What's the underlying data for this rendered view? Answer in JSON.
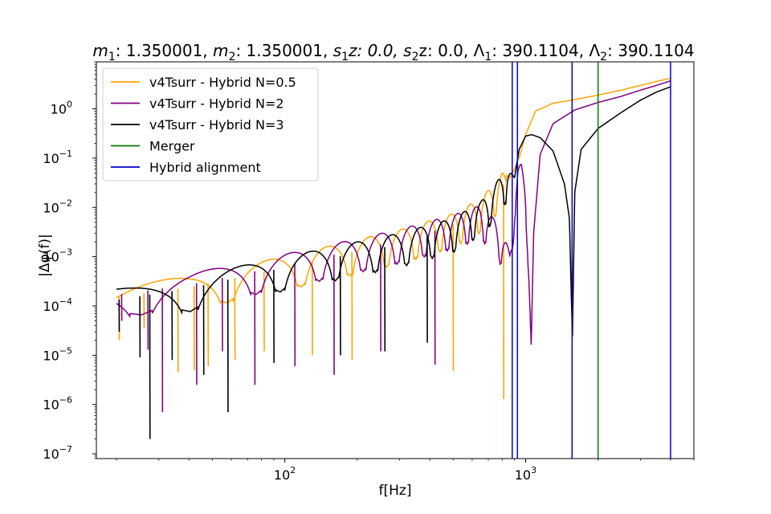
{
  "chart_data": {
    "type": "line",
    "title": {
      "m1_label": "m",
      "m1_sub": "1",
      "m1_value": ": 1.350001, ",
      "m2_label": "m",
      "m2_sub": "2",
      "m2_value": ": 1.350001, ",
      "s1z_label": "s",
      "s1z_sub": "1",
      "s1z_value": "z: 0.0, ",
      "s2z_label": "s",
      "s2z_sub": "2",
      "s2z_value": "z: 0.0, ",
      "L1_label": "Λ",
      "L1_sub": "1",
      "L1_value": ": 390.1104, ",
      "L2_label": "Λ",
      "L2_sub": "2",
      "L2_value": ": 390.1104"
    },
    "xlabel": "f[Hz]",
    "ylabel": "|Δφ(f)|",
    "xscale": "log",
    "yscale": "log",
    "xlim": [
      16.5,
      5000
    ],
    "ylim": [
      8e-08,
      9
    ],
    "x_ticks": [
      {
        "value": 100,
        "base": "10",
        "exp": "2"
      },
      {
        "value": 1000,
        "base": "10",
        "exp": "3"
      }
    ],
    "y_ticks": [
      {
        "value": 1e-07,
        "base": "10",
        "exp": "−7"
      },
      {
        "value": 1e-06,
        "base": "10",
        "exp": "−6"
      },
      {
        "value": 1e-05,
        "base": "10",
        "exp": "−5"
      },
      {
        "value": 0.0001,
        "base": "10",
        "exp": "−4"
      },
      {
        "value": 0.001,
        "base": "10",
        "exp": "−3"
      },
      {
        "value": 0.01,
        "base": "10",
        "exp": "−2"
      },
      {
        "value": 0.1,
        "base": "10",
        "exp": "−1"
      },
      {
        "value": 1,
        "base": "10",
        "exp": "0"
      }
    ],
    "grid": false,
    "legend_position": "top-left",
    "series": [
      {
        "name": "v4Tsurr - Hybrid N=0.5",
        "color": "#ffa500",
        "x": [
          20,
          40,
          80,
          150,
          300,
          500,
          650,
          740,
          800,
          830,
          860,
          900,
          950,
          1000,
          1100,
          1300,
          1600,
          2000,
          2500,
          3000,
          3500,
          4000
        ],
        "y": [
          0.00025,
          0.0004,
          0.0008,
          0.0016,
          0.0035,
          0.0075,
          0.015,
          0.03,
          0.05,
          0.045,
          0.04,
          0.06,
          0.12,
          0.3,
          0.9,
          1.3,
          1.55,
          1.9,
          2.4,
          3.0,
          3.6,
          4.2
        ]
      },
      {
        "name": "v4Tsurr - Hybrid N=2",
        "color": "#800080",
        "x": [
          20,
          40,
          80,
          150,
          300,
          500,
          650,
          750,
          830,
          860,
          880,
          900,
          930,
          960,
          1000,
          1020,
          1040,
          1055,
          1080,
          1150,
          1300,
          1600,
          2000,
          2500,
          3000,
          3500,
          4000
        ],
        "y": [
          0.00028,
          0.00045,
          0.0009,
          0.0017,
          0.0036,
          0.007,
          0.011,
          0.0055,
          0.002,
          0.0012,
          0.003,
          0.025,
          0.07,
          0.075,
          0.03,
          0.005,
          0.0002,
          1.5e-05,
          0.003,
          0.12,
          0.5,
          0.95,
          1.35,
          1.8,
          2.4,
          3.0,
          3.7
        ]
      },
      {
        "name": "v4Tsurr - Hybrid N=3",
        "color": "#000000",
        "x": [
          20,
          40,
          80,
          150,
          300,
          500,
          650,
          720,
          780,
          840,
          870,
          900,
          940,
          1000,
          1060,
          1150,
          1300,
          1450,
          1520,
          1565,
          1600,
          1700,
          2000,
          2500,
          3000,
          3500,
          4000
        ],
        "y": [
          0.00022,
          0.00038,
          0.0008,
          0.0015,
          0.003,
          0.006,
          0.013,
          0.022,
          0.04,
          0.065,
          0.05,
          0.04,
          0.15,
          0.28,
          0.3,
          0.26,
          0.14,
          0.03,
          0.006,
          2.2e-05,
          0.02,
          0.15,
          0.4,
          0.85,
          1.5,
          2.2,
          2.8
        ]
      },
      {
        "name": "Merger",
        "color": "#008000",
        "vertical_x": [
          2000
        ]
      },
      {
        "name": "Hybrid alignment",
        "color": "#0000cd",
        "vertical_x": [
          880,
          925,
          1560,
          4000
        ]
      }
    ],
    "oscillation": {
      "f_min": 20,
      "f_max": 830,
      "f_max_late": 1050,
      "deep_minima": [
        {
          "series": "v4Tsurr - Hybrid N=0.5",
          "x": 20.5,
          "y": 2e-05
        },
        {
          "series": "v4Tsurr - Hybrid N=0.5",
          "x": 26,
          "y": 3.5e-05
        },
        {
          "series": "v4Tsurr - Hybrid N=0.5",
          "x": 36,
          "y": 4.5e-06
        },
        {
          "series": "v4Tsurr - Hybrid N=0.5",
          "x": 42,
          "y": 5e-06
        },
        {
          "series": "v4Tsurr - Hybrid N=0.5",
          "x": 48,
          "y": 6e-06
        },
        {
          "series": "v4Tsurr - Hybrid N=0.5",
          "x": 62,
          "y": 8e-06
        },
        {
          "series": "v4Tsurr - Hybrid N=0.5",
          "x": 82,
          "y": 1.2e-05
        },
        {
          "series": "v4Tsurr - Hybrid N=0.5",
          "x": 130,
          "y": 1e-05
        },
        {
          "series": "v4Tsurr - Hybrid N=0.5",
          "x": 190,
          "y": 8e-06
        },
        {
          "series": "v4Tsurr - Hybrid N=0.5",
          "x": 500,
          "y": 4.8e-06
        },
        {
          "series": "v4Tsurr - Hybrid N=0.5",
          "x": 810,
          "y": 1.3e-06
        },
        {
          "series": "v4Tsurr - Hybrid N=2",
          "x": 21,
          "y": 5e-05
        },
        {
          "series": "v4Tsurr - Hybrid N=2",
          "x": 27,
          "y": 1.3e-05
        },
        {
          "series": "v4Tsurr - Hybrid N=2",
          "x": 31,
          "y": 7e-07
        },
        {
          "series": "v4Tsurr - Hybrid N=2",
          "x": 43,
          "y": 2.5e-06
        },
        {
          "series": "v4Tsurr - Hybrid N=2",
          "x": 55,
          "y": 1.2e-05
        },
        {
          "series": "v4Tsurr - Hybrid N=2",
          "x": 75,
          "y": 2.5e-06
        },
        {
          "series": "v4Tsurr - Hybrid N=2",
          "x": 110,
          "y": 6e-06
        },
        {
          "series": "v4Tsurr - Hybrid N=2",
          "x": 160,
          "y": 4e-06
        },
        {
          "series": "v4Tsurr - Hybrid N=2",
          "x": 250,
          "y": 1.2e-05
        },
        {
          "series": "v4Tsurr - Hybrid N=2",
          "x": 420,
          "y": 6.5e-06
        },
        {
          "series": "v4Tsurr - Hybrid N=3",
          "x": 20.5,
          "y": 3e-05
        },
        {
          "series": "v4Tsurr - Hybrid N=3",
          "x": 25,
          "y": 9e-06
        },
        {
          "series": "v4Tsurr - Hybrid N=3",
          "x": 27.5,
          "y": 2e-07
        },
        {
          "series": "v4Tsurr - Hybrid N=3",
          "x": 34,
          "y": 8e-06
        },
        {
          "series": "v4Tsurr - Hybrid N=3",
          "x": 46,
          "y": 4e-06
        },
        {
          "series": "v4Tsurr - Hybrid N=3",
          "x": 58,
          "y": 7e-07
        },
        {
          "series": "v4Tsurr - Hybrid N=3",
          "x": 90,
          "y": 7e-06
        },
        {
          "series": "v4Tsurr - Hybrid N=3",
          "x": 170,
          "y": 1e-05
        },
        {
          "series": "v4Tsurr - Hybrid N=3",
          "x": 260,
          "y": 1.2e-05
        },
        {
          "series": "v4Tsurr - Hybrid N=3",
          "x": 390,
          "y": 1.8e-05
        }
      ]
    }
  }
}
